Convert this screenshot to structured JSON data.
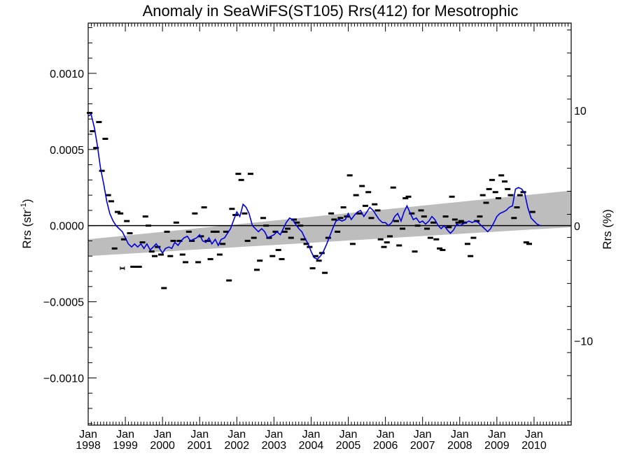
{
  "chart_data": {
    "type": "scatter",
    "title": "Anomaly in SeaWiFS(ST105) Rrs(412) for Mesotrophic",
    "ylabel_left": "Rrs (str",
    "ylabel_left_sup": "-1",
    "ylabel_left_close": ")",
    "ylabel_right": "Rrs (%)",
    "ylim": [
      -0.00131,
      0.00133
    ],
    "right_ylim": [
      -17.3,
      17.6
    ],
    "xlim": [
      1998.0,
      2011.0
    ],
    "y_ticks": [
      {
        "value": 0.001,
        "label": "0.0010"
      },
      {
        "value": 0.0005,
        "label": "0.0005"
      },
      {
        "value": 0.0,
        "label": "0.0000"
      },
      {
        "value": -0.0005,
        "label": "−0.0005"
      },
      {
        "value": -0.001,
        "label": "−0.0010"
      }
    ],
    "right_y_ticks": [
      {
        "value": 10,
        "label": "10"
      },
      {
        "value": 0,
        "label": "0"
      },
      {
        "value": -10,
        "label": "−10"
      }
    ],
    "x_ticks": [
      {
        "value": 1998,
        "line1": "Jan",
        "line2": "1998"
      },
      {
        "value": 1999,
        "line1": "Jan",
        "line2": "1999"
      },
      {
        "value": 2000,
        "line1": "Jan",
        "line2": "2000"
      },
      {
        "value": 2001,
        "line1": "Jan",
        "line2": "2001"
      },
      {
        "value": 2002,
        "line1": "Jan",
        "line2": "2002"
      },
      {
        "value": 2003,
        "line1": "Jan",
        "line2": "2003"
      },
      {
        "value": 2004,
        "line1": "Jan",
        "line2": "2004"
      },
      {
        "value": 2005,
        "line1": "Jan",
        "line2": "2005"
      },
      {
        "value": 2006,
        "line1": "Jan",
        "line2": "2006"
      },
      {
        "value": 2007,
        "line1": "Jan",
        "line2": "2007"
      },
      {
        "value": 2008,
        "line1": "Jan",
        "line2": "2008"
      },
      {
        "value": 2009,
        "line1": "Jan",
        "line2": "2009"
      },
      {
        "value": 2010,
        "line1": "Jan",
        "line2": "2010"
      }
    ],
    "trend_band": {
      "x": [
        1998.0,
        2011.0
      ],
      "upper": [
        -9e-05,
        0.00023
      ],
      "lower": [
        -0.0002,
        -1e-05
      ]
    },
    "monthly_anomalies": [
      {
        "x": 1998.04,
        "y": 0.00074
      },
      {
        "x": 1998.12,
        "y": 0.00062
      },
      {
        "x": 1998.21,
        "y": 0.00051
      },
      {
        "x": 1998.29,
        "y": 0.00068
      },
      {
        "x": 1998.37,
        "y": 0.00036
      },
      {
        "x": 1998.46,
        "y": 0.00057
      },
      {
        "x": 1998.54,
        "y": 0.0002
      },
      {
        "x": 1998.62,
        "y": 0.00016
      },
      {
        "x": 1998.71,
        "y": -0.00015
      },
      {
        "x": 1998.79,
        "y": 9e-05
      },
      {
        "x": 1998.87,
        "y": 8e-05
      },
      {
        "x": 1998.96,
        "y": -9e-05
      },
      {
        "x": 1999.04,
        "y": 3e-05
      },
      {
        "x": 1999.12,
        "y": -5e-05
      },
      {
        "x": 1999.21,
        "y": -0.00027
      },
      {
        "x": 1999.29,
        "y": -0.00027
      },
      {
        "x": 1999.37,
        "y": -0.00027
      },
      {
        "x": 1999.46,
        "y": -0.00011
      },
      {
        "x": 1999.54,
        "y": 6e-05
      },
      {
        "x": 1999.62,
        "y": 0.0
      },
      {
        "x": 1999.71,
        "y": -0.00017
      },
      {
        "x": 1999.79,
        "y": -0.0002
      },
      {
        "x": 1999.87,
        "y": -0.00014
      },
      {
        "x": 1999.96,
        "y": -0.00019
      },
      {
        "x": 2000.04,
        "y": -0.00041
      },
      {
        "x": 2000.12,
        "y": -4e-05
      },
      {
        "x": 2000.21,
        "y": -0.0002
      },
      {
        "x": 2000.29,
        "y": -0.0001
      },
      {
        "x": 2000.37,
        "y": 2e-05
      },
      {
        "x": 2000.46,
        "y": -0.0001
      },
      {
        "x": 2000.54,
        "y": -0.00019
      },
      {
        "x": 2000.62,
        "y": -0.00024
      },
      {
        "x": 2000.71,
        "y": -4e-05
      },
      {
        "x": 2000.79,
        "y": -0.0001
      },
      {
        "x": 2000.87,
        "y": 8e-05
      },
      {
        "x": 2000.96,
        "y": -0.00024
      },
      {
        "x": 2001.04,
        "y": -7e-05
      },
      {
        "x": 2001.12,
        "y": 0.00012
      },
      {
        "x": 2001.21,
        "y": -0.0001
      },
      {
        "x": 2001.29,
        "y": -0.00022
      },
      {
        "x": 2001.37,
        "y": -4e-05
      },
      {
        "x": 2001.46,
        "y": -4e-05
      },
      {
        "x": 2001.54,
        "y": -0.00019
      },
      {
        "x": 2001.62,
        "y": -0.00012
      },
      {
        "x": 2001.71,
        "y": -4e-05
      },
      {
        "x": 2001.79,
        "y": -0.00036
      },
      {
        "x": 2001.87,
        "y": 0.00011
      },
      {
        "x": 2001.96,
        "y": 7e-05
      },
      {
        "x": 2002.04,
        "y": 0.00034
      },
      {
        "x": 2002.12,
        "y": 0.0003
      },
      {
        "x": 2002.21,
        "y": 8e-05
      },
      {
        "x": 2002.29,
        "y": -0.0001
      },
      {
        "x": 2002.37,
        "y": 0.00034
      },
      {
        "x": 2002.46,
        "y": -8e-05
      },
      {
        "x": 2002.54,
        "y": -0.00029
      },
      {
        "x": 2002.62,
        "y": -0.00023
      },
      {
        "x": 2002.71,
        "y": 5e-05
      },
      {
        "x": 2002.79,
        "y": 0.0
      },
      {
        "x": 2002.87,
        "y": -8e-05
      },
      {
        "x": 2002.96,
        "y": -0.0002
      },
      {
        "x": 2003.04,
        "y": -4e-05
      },
      {
        "x": 2003.12,
        "y": -0.00016
      },
      {
        "x": 2003.21,
        "y": -0.00022
      },
      {
        "x": 2003.29,
        "y": -4e-05
      },
      {
        "x": 2003.37,
        "y": -2e-05
      },
      {
        "x": 2003.46,
        "y": -8e-05
      },
      {
        "x": 2003.54,
        "y": 4e-05
      },
      {
        "x": 2003.62,
        "y": 2e-05
      },
      {
        "x": 2003.71,
        "y": 0.0
      },
      {
        "x": 2003.79,
        "y": -9e-05
      },
      {
        "x": 2003.87,
        "y": -0.00012
      },
      {
        "x": 2003.96,
        "y": -0.00014
      },
      {
        "x": 2004.04,
        "y": -0.00028
      },
      {
        "x": 2004.12,
        "y": -0.0002
      },
      {
        "x": 2004.21,
        "y": -0.00023
      },
      {
        "x": 2004.29,
        "y": -0.00018
      },
      {
        "x": 2004.37,
        "y": -0.00031
      },
      {
        "x": 2004.46,
        "y": -8e-05
      },
      {
        "x": 2004.54,
        "y": 8e-05
      },
      {
        "x": 2004.62,
        "y": 4e-05
      },
      {
        "x": 2004.71,
        "y": -4e-05
      },
      {
        "x": 2004.79,
        "y": 5e-05
      },
      {
        "x": 2004.87,
        "y": 0.00012
      },
      {
        "x": 2004.96,
        "y": 6e-05
      },
      {
        "x": 2005.04,
        "y": 0.00033
      },
      {
        "x": 2005.12,
        "y": -0.00012
      },
      {
        "x": 2005.21,
        "y": 0.0002
      },
      {
        "x": 2005.29,
        "y": 8e-05
      },
      {
        "x": 2005.37,
        "y": 0.00026
      },
      {
        "x": 2005.46,
        "y": 0.00013
      },
      {
        "x": 2005.54,
        "y": 0.00022
      },
      {
        "x": 2005.62,
        "y": 5e-05
      },
      {
        "x": 2005.71,
        "y": 0.00014
      },
      {
        "x": 2005.79,
        "y": 0.0001
      },
      {
        "x": 2005.87,
        "y": -9e-05
      },
      {
        "x": 2005.96,
        "y": -0.00014
      },
      {
        "x": 2006.04,
        "y": -0.00011
      },
      {
        "x": 2006.12,
        "y": -7e-05
      },
      {
        "x": 2006.21,
        "y": 0.00025
      },
      {
        "x": 2006.29,
        "y": 3e-05
      },
      {
        "x": 2006.37,
        "y": -0.00013
      },
      {
        "x": 2006.46,
        "y": -2e-05
      },
      {
        "x": 2006.54,
        "y": 0.00018
      },
      {
        "x": 2006.62,
        "y": 0.00019
      },
      {
        "x": 2006.71,
        "y": 8e-05
      },
      {
        "x": 2006.79,
        "y": -0.00017
      },
      {
        "x": 2006.87,
        "y": 0.0
      },
      {
        "x": 2006.96,
        "y": 0.0001
      },
      {
        "x": 2007.04,
        "y": 6e-05
      },
      {
        "x": 2007.12,
        "y": -2e-05
      },
      {
        "x": 2007.21,
        "y": -8e-05
      },
      {
        "x": 2007.29,
        "y": 2e-05
      },
      {
        "x": 2007.37,
        "y": -9e-05
      },
      {
        "x": 2007.46,
        "y": -0.00015
      },
      {
        "x": 2007.54,
        "y": -0.00016
      },
      {
        "x": 2007.62,
        "y": 6e-05
      },
      {
        "x": 2007.71,
        "y": -1e-05
      },
      {
        "x": 2007.79,
        "y": 0.00019
      },
      {
        "x": 2007.87,
        "y": 4e-05
      },
      {
        "x": 2007.96,
        "y": 2e-05
      },
      {
        "x": 2008.04,
        "y": 3e-05
      },
      {
        "x": 2008.12,
        "y": 2e-05
      },
      {
        "x": 2008.21,
        "y": -0.00012
      },
      {
        "x": 2008.29,
        "y": -0.0002
      },
      {
        "x": 2008.37,
        "y": -8e-05
      },
      {
        "x": 2008.46,
        "y": 3e-05
      },
      {
        "x": 2008.54,
        "y": 6e-05
      },
      {
        "x": 2008.62,
        "y": 0.0002
      },
      {
        "x": 2008.71,
        "y": 0.00015
      },
      {
        "x": 2008.79,
        "y": 0.00024
      },
      {
        "x": 2008.87,
        "y": 0.0003
      },
      {
        "x": 2008.96,
        "y": 0.00022
      },
      {
        "x": 2009.04,
        "y": 0.00018
      },
      {
        "x": 2009.12,
        "y": 0.00033
      },
      {
        "x": 2009.21,
        "y": 0.00029
      },
      {
        "x": 2009.29,
        "y": 0.00024
      },
      {
        "x": 2009.37,
        "y": 0.0002
      },
      {
        "x": 2009.46,
        "y": 5e-05
      },
      {
        "x": 2009.54,
        "y": 0.00012
      },
      {
        "x": 2009.62,
        "y": 0.0002
      },
      {
        "x": 2009.71,
        "y": 0.00022
      },
      {
        "x": 2009.79,
        "y": -0.00011
      },
      {
        "x": 2009.87,
        "y": -0.00012
      },
      {
        "x": 2009.96,
        "y": 9e-05
      }
    ],
    "smoothed_series": {
      "name": "",
      "color": "#0000dd",
      "points": [
        [
          1998.0,
          0.00072
        ],
        [
          1998.08,
          0.00073
        ],
        [
          1998.17,
          0.00064
        ],
        [
          1998.25,
          0.00052
        ],
        [
          1998.33,
          0.00038
        ],
        [
          1998.42,
          0.00027
        ],
        [
          1998.5,
          0.00016
        ],
        [
          1998.58,
          8e-05
        ],
        [
          1998.67,
          3e-05
        ],
        [
          1998.75,
          0.0
        ],
        [
          1998.83,
          -2e-05
        ],
        [
          1998.92,
          -4e-05
        ],
        [
          1999.0,
          -8e-05
        ],
        [
          1999.08,
          -0.00012
        ],
        [
          1999.17,
          -0.00014
        ],
        [
          1999.25,
          -0.00012
        ],
        [
          1999.33,
          -0.00014
        ],
        [
          1999.42,
          -0.00012
        ],
        [
          1999.5,
          -0.00015
        ],
        [
          1999.58,
          -0.00012
        ],
        [
          1999.67,
          -0.00016
        ],
        [
          1999.75,
          -0.00014
        ],
        [
          1999.83,
          -0.00012
        ],
        [
          1999.92,
          -0.00015
        ],
        [
          2000.0,
          -0.00018
        ],
        [
          2000.08,
          -0.00015
        ],
        [
          2000.17,
          -0.00014
        ],
        [
          2000.25,
          -0.00015
        ],
        [
          2000.33,
          -0.00011
        ],
        [
          2000.42,
          -0.00013
        ],
        [
          2000.5,
          -0.0001
        ],
        [
          2000.58,
          -8e-05
        ],
        [
          2000.67,
          -7e-05
        ],
        [
          2000.75,
          -0.0001
        ],
        [
          2000.83,
          -9e-05
        ],
        [
          2000.92,
          -8e-05
        ],
        [
          2001.0,
          -6e-05
        ],
        [
          2001.08,
          -0.0001
        ],
        [
          2001.17,
          -0.00011
        ],
        [
          2001.25,
          -8e-05
        ],
        [
          2001.33,
          -0.00012
        ],
        [
          2001.42,
          -9e-05
        ],
        [
          2001.5,
          -0.00013
        ],
        [
          2001.58,
          -9e-05
        ],
        [
          2001.67,
          -8e-05
        ],
        [
          2001.75,
          -5e-05
        ],
        [
          2001.83,
          -2e-05
        ],
        [
          2001.92,
          4e-05
        ],
        [
          2002.0,
          9e-05
        ],
        [
          2002.08,
          6e-05
        ],
        [
          2002.17,
          0.00014
        ],
        [
          2002.25,
          0.00012
        ],
        [
          2002.33,
          8e-05
        ],
        [
          2002.42,
          0.0
        ],
        [
          2002.5,
          -2e-05
        ],
        [
          2002.58,
          -4e-05
        ],
        [
          2002.67,
          -2e-05
        ],
        [
          2002.75,
          -4e-05
        ],
        [
          2002.83,
          -8e-05
        ],
        [
          2002.92,
          -7e-05
        ],
        [
          2003.0,
          -6e-05
        ],
        [
          2003.08,
          -4e-05
        ],
        [
          2003.17,
          -6e-05
        ],
        [
          2003.25,
          -2e-05
        ],
        [
          2003.33,
          2e-05
        ],
        [
          2003.42,
          5e-05
        ],
        [
          2003.5,
          4e-05
        ],
        [
          2003.58,
          1e-05
        ],
        [
          2003.67,
          -2e-05
        ],
        [
          2003.75,
          -4e-05
        ],
        [
          2003.83,
          -8e-05
        ],
        [
          2003.92,
          -0.00012
        ],
        [
          2004.0,
          -0.00017
        ],
        [
          2004.08,
          -0.00021
        ],
        [
          2004.17,
          -0.00022
        ],
        [
          2004.25,
          -0.0002
        ],
        [
          2004.33,
          -0.00017
        ],
        [
          2004.42,
          -0.00012
        ],
        [
          2004.5,
          -7e-05
        ],
        [
          2004.58,
          -2e-05
        ],
        [
          2004.67,
          3e-05
        ],
        [
          2004.75,
          4e-05
        ],
        [
          2004.83,
          3e-05
        ],
        [
          2004.92,
          4e-05
        ],
        [
          2005.0,
          8e-05
        ],
        [
          2005.08,
          4e-05
        ],
        [
          2005.17,
          7e-05
        ],
        [
          2005.25,
          9e-05
        ],
        [
          2005.33,
          0.0001
        ],
        [
          2005.42,
          6e-05
        ],
        [
          2005.5,
          9e-05
        ],
        [
          2005.58,
          0.00012
        ],
        [
          2005.67,
          0.0001
        ],
        [
          2005.75,
          7e-05
        ],
        [
          2005.83,
          4e-05
        ],
        [
          2005.92,
          2e-05
        ],
        [
          2006.0,
          2e-05
        ],
        [
          2006.08,
          0.0
        ],
        [
          2006.17,
          2e-05
        ],
        [
          2006.25,
          6e-05
        ],
        [
          2006.33,
          8e-05
        ],
        [
          2006.42,
          3e-05
        ],
        [
          2006.5,
          9e-05
        ],
        [
          2006.58,
          0.00013
        ],
        [
          2006.67,
          8e-05
        ],
        [
          2006.75,
          4e-05
        ],
        [
          2006.83,
          5e-05
        ],
        [
          2006.92,
          2e-05
        ],
        [
          2007.0,
          3e-05
        ],
        [
          2007.08,
          1e-05
        ],
        [
          2007.17,
          3e-05
        ],
        [
          2007.25,
          6e-05
        ],
        [
          2007.33,
          4e-05
        ],
        [
          2007.42,
          0.0
        ],
        [
          2007.5,
          -2e-05
        ],
        [
          2007.58,
          0.0
        ],
        [
          2007.67,
          -3e-05
        ],
        [
          2007.75,
          -5e-05
        ],
        [
          2007.83,
          -3e-05
        ],
        [
          2007.92,
          1e-05
        ],
        [
          2008.0,
          0.0
        ],
        [
          2008.08,
          1e-05
        ],
        [
          2008.17,
          2e-05
        ],
        [
          2008.25,
          3e-05
        ],
        [
          2008.33,
          2e-05
        ],
        [
          2008.42,
          3e-05
        ],
        [
          2008.5,
          2e-05
        ],
        [
          2008.58,
          0.0
        ],
        [
          2008.67,
          -2e-05
        ],
        [
          2008.75,
          -4e-05
        ],
        [
          2008.83,
          -2e-05
        ],
        [
          2008.92,
          2e-05
        ],
        [
          2009.0,
          6e-05
        ],
        [
          2009.08,
          8e-05
        ],
        [
          2009.17,
          9e-05
        ],
        [
          2009.25,
          0.0001
        ],
        [
          2009.33,
          0.00012
        ],
        [
          2009.42,
          0.00013
        ],
        [
          2009.5,
          0.00024
        ],
        [
          2009.58,
          0.00025
        ],
        [
          2009.67,
          0.00024
        ],
        [
          2009.75,
          0.00021
        ],
        [
          2009.83,
          0.00012
        ],
        [
          2009.92,
          5e-05
        ],
        [
          2010.0,
          3e-05
        ],
        [
          2010.08,
          1e-05
        ],
        [
          2010.17,
          0.0
        ]
      ]
    },
    "error_bar_marker": {
      "x": 1998.92,
      "y": -0.00028
    },
    "zero_line": 0.0,
    "grid": false,
    "legend": "none"
  }
}
